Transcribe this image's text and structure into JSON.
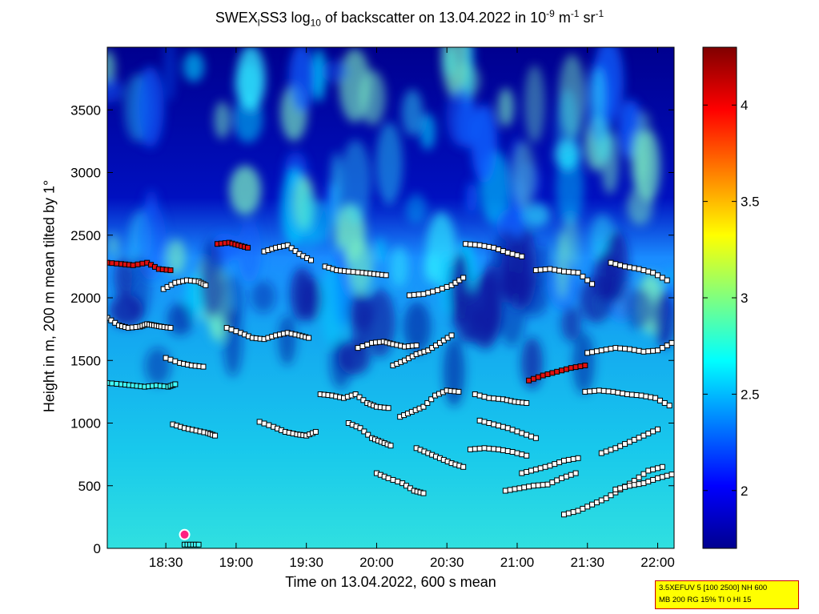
{
  "chart_data": {
    "type": "heatmap",
    "title": {
      "prefix": "SWEX",
      "sub1": "l",
      "mid": "SS3 log",
      "sub2": "10",
      "suffix": " of backscatter on 13.04.2022 in 10",
      "sup1": "-9",
      "unit_m": " m",
      "sup2": "-1",
      "unit_sr": " sr",
      "sup3": "-1"
    },
    "xlabel": "Time on 13.04.2022, 600 s mean",
    "ylabel": "Height in m, 200 m mean tilted by 1°",
    "x_ticks": [
      "18:30",
      "19:00",
      "19:30",
      "20:00",
      "20:30",
      "21:00",
      "21:30",
      "22:00"
    ],
    "x_tick_minutes": [
      1110,
      1140,
      1170,
      1200,
      1230,
      1260,
      1290,
      1320
    ],
    "xlim_minutes": [
      1085,
      1327
    ],
    "y_ticks": [
      "0",
      "500",
      "1000",
      "1500",
      "2000",
      "2500",
      "3000",
      "3500"
    ],
    "y_tick_values": [
      0,
      500,
      1000,
      1500,
      2000,
      2500,
      3000,
      3500
    ],
    "ylim": [
      0,
      4000
    ],
    "colorbar": {
      "ticks": [
        "2",
        "2.5",
        "3",
        "3.5",
        "4"
      ],
      "tick_values": [
        2,
        2.5,
        3,
        3.5,
        4
      ],
      "range": [
        1.7,
        4.3
      ],
      "colormap": "jet"
    },
    "colors": {
      "low": "#00008f",
      "mid": "#00ffff",
      "high": "#800000"
    },
    "layers": [
      {
        "name": "layer-1",
        "color": "white",
        "points": [
          [
            1085,
            1840
          ],
          [
            1090,
            1780
          ],
          [
            1094,
            1760
          ],
          [
            1099,
            1770
          ],
          [
            1102,
            1790
          ],
          [
            1105,
            1780
          ],
          [
            1108,
            1770
          ],
          [
            1112,
            1760
          ]
        ]
      },
      {
        "name": "layer-2",
        "color": "cyan",
        "points": [
          [
            1085,
            1320
          ],
          [
            1091,
            1310
          ],
          [
            1096,
            1300
          ],
          [
            1101,
            1290
          ],
          [
            1106,
            1300
          ],
          [
            1111,
            1290
          ],
          [
            1114,
            1310
          ]
        ]
      },
      {
        "name": "layer-3",
        "color": "red",
        "points": [
          [
            1085,
            2280
          ],
          [
            1091,
            2270
          ],
          [
            1096,
            2260
          ],
          [
            1102,
            2280
          ],
          [
            1107,
            2230
          ],
          [
            1112,
            2220
          ]
        ]
      },
      {
        "name": "layer-4",
        "color": "white",
        "points": [
          [
            1109,
            2070
          ],
          [
            1114,
            2120
          ],
          [
            1119,
            2140
          ],
          [
            1124,
            2130
          ],
          [
            1127,
            2100
          ]
        ]
      },
      {
        "name": "layer-5",
        "color": "white",
        "points": [
          [
            1110,
            1520
          ],
          [
            1116,
            1480
          ],
          [
            1121,
            1460
          ],
          [
            1126,
            1450
          ]
        ]
      },
      {
        "name": "layer-6",
        "color": "white",
        "points": [
          [
            1113,
            990
          ],
          [
            1118,
            960
          ],
          [
            1123,
            940
          ],
          [
            1128,
            920
          ],
          [
            1131,
            900
          ]
        ]
      },
      {
        "name": "layer-7",
        "color": "red",
        "points": [
          [
            1132,
            2430
          ],
          [
            1137,
            2440
          ],
          [
            1141,
            2420
          ],
          [
            1145,
            2400
          ]
        ]
      },
      {
        "name": "layer-8",
        "color": "white",
        "points": [
          [
            1136,
            1760
          ],
          [
            1142,
            1720
          ],
          [
            1147,
            1680
          ],
          [
            1152,
            1670
          ],
          [
            1157,
            1700
          ],
          [
            1162,
            1720
          ],
          [
            1167,
            1700
          ],
          [
            1171,
            1680
          ]
        ]
      },
      {
        "name": "layer-9",
        "color": "white",
        "points": [
          [
            1150,
            1010
          ],
          [
            1156,
            970
          ],
          [
            1161,
            930
          ],
          [
            1166,
            910
          ],
          [
            1170,
            900
          ],
          [
            1174,
            930
          ]
        ]
      },
      {
        "name": "layer-10",
        "color": "white",
        "points": [
          [
            1152,
            2370
          ],
          [
            1157,
            2400
          ],
          [
            1162,
            2420
          ],
          [
            1167,
            2350
          ],
          [
            1172,
            2300
          ]
        ]
      },
      {
        "name": "layer-11",
        "color": "white",
        "points": [
          [
            1176,
            1230
          ],
          [
            1181,
            1220
          ],
          [
            1186,
            1200
          ],
          [
            1191,
            1230
          ],
          [
            1196,
            1160
          ],
          [
            1200,
            1130
          ],
          [
            1205,
            1120
          ]
        ]
      },
      {
        "name": "layer-12",
        "color": "white",
        "points": [
          [
            1178,
            2250
          ],
          [
            1183,
            2220
          ],
          [
            1188,
            2210
          ],
          [
            1194,
            2200
          ],
          [
            1199,
            2190
          ],
          [
            1204,
            2180
          ]
        ]
      },
      {
        "name": "layer-13",
        "color": "white",
        "points": [
          [
            1188,
            1000
          ],
          [
            1193,
            960
          ],
          [
            1198,
            880
          ],
          [
            1202,
            850
          ],
          [
            1206,
            820
          ]
        ]
      },
      {
        "name": "layer-14",
        "color": "white",
        "points": [
          [
            1192,
            1600
          ],
          [
            1198,
            1640
          ],
          [
            1203,
            1650
          ],
          [
            1207,
            1630
          ],
          [
            1212,
            1610
          ],
          [
            1217,
            1620
          ]
        ]
      },
      {
        "name": "layer-15",
        "color": "white",
        "points": [
          [
            1200,
            600
          ],
          [
            1205,
            560
          ],
          [
            1211,
            520
          ],
          [
            1216,
            460
          ],
          [
            1220,
            440
          ]
        ]
      },
      {
        "name": "layer-16",
        "color": "white",
        "points": [
          [
            1207,
            1460
          ],
          [
            1212,
            1500
          ],
          [
            1217,
            1550
          ],
          [
            1222,
            1580
          ],
          [
            1227,
            1640
          ],
          [
            1232,
            1700
          ]
        ]
      },
      {
        "name": "layer-17",
        "color": "white",
        "points": [
          [
            1210,
            1050
          ],
          [
            1215,
            1090
          ],
          [
            1220,
            1130
          ],
          [
            1225,
            1220
          ],
          [
            1230,
            1260
          ],
          [
            1235,
            1250
          ]
        ]
      },
      {
        "name": "layer-18",
        "color": "white",
        "points": [
          [
            1214,
            2020
          ],
          [
            1220,
            2030
          ],
          [
            1226,
            2060
          ],
          [
            1232,
            2100
          ],
          [
            1237,
            2160
          ]
        ]
      },
      {
        "name": "layer-19",
        "color": "white",
        "points": [
          [
            1217,
            800
          ],
          [
            1222,
            760
          ],
          [
            1227,
            720
          ],
          [
            1232,
            680
          ],
          [
            1237,
            650
          ]
        ]
      },
      {
        "name": "layer-20",
        "color": "white",
        "points": [
          [
            1238,
            2430
          ],
          [
            1244,
            2420
          ],
          [
            1250,
            2400
          ],
          [
            1256,
            2360
          ],
          [
            1262,
            2330
          ]
        ]
      },
      {
        "name": "layer-21",
        "color": "white",
        "points": [
          [
            1242,
            1230
          ],
          [
            1248,
            1200
          ],
          [
            1254,
            1190
          ],
          [
            1259,
            1170
          ],
          [
            1264,
            1160
          ]
        ]
      },
      {
        "name": "layer-22",
        "color": "white",
        "points": [
          [
            1244,
            1020
          ],
          [
            1250,
            990
          ],
          [
            1256,
            960
          ],
          [
            1262,
            920
          ],
          [
            1268,
            880
          ]
        ]
      },
      {
        "name": "layer-23",
        "color": "white",
        "points": [
          [
            1240,
            790
          ],
          [
            1246,
            800
          ],
          [
            1252,
            790
          ],
          [
            1258,
            770
          ],
          [
            1264,
            740
          ]
        ]
      },
      {
        "name": "layer-24",
        "color": "white",
        "points": [
          [
            1255,
            460
          ],
          [
            1261,
            480
          ],
          [
            1267,
            500
          ],
          [
            1273,
            510
          ],
          [
            1279,
            560
          ],
          [
            1285,
            600
          ]
        ]
      },
      {
        "name": "layer-25",
        "color": "white",
        "points": [
          [
            1262,
            600
          ],
          [
            1268,
            630
          ],
          [
            1274,
            660
          ],
          [
            1280,
            700
          ],
          [
            1286,
            720
          ]
        ]
      },
      {
        "name": "layer-26",
        "color": "red",
        "points": [
          [
            1265,
            1340
          ],
          [
            1271,
            1380
          ],
          [
            1277,
            1410
          ],
          [
            1283,
            1440
          ],
          [
            1289,
            1460
          ]
        ]
      },
      {
        "name": "layer-27",
        "color": "white",
        "points": [
          [
            1268,
            2220
          ],
          [
            1274,
            2230
          ],
          [
            1280,
            2210
          ],
          [
            1286,
            2200
          ],
          [
            1292,
            2110
          ]
        ]
      },
      {
        "name": "layer-28",
        "color": "white",
        "points": [
          [
            1280,
            270
          ],
          [
            1286,
            300
          ],
          [
            1292,
            350
          ],
          [
            1298,
            400
          ],
          [
            1304,
            470
          ],
          [
            1310,
            540
          ],
          [
            1316,
            620
          ],
          [
            1322,
            650
          ]
        ]
      },
      {
        "name": "layer-29",
        "color": "white",
        "points": [
          [
            1289,
            1250
          ],
          [
            1295,
            1260
          ],
          [
            1301,
            1250
          ],
          [
            1307,
            1230
          ],
          [
            1313,
            1220
          ],
          [
            1319,
            1200
          ],
          [
            1325,
            1140
          ]
        ]
      },
      {
        "name": "layer-30",
        "color": "white",
        "points": [
          [
            1290,
            1560
          ],
          [
            1296,
            1580
          ],
          [
            1302,
            1600
          ],
          [
            1308,
            1590
          ],
          [
            1314,
            1570
          ],
          [
            1320,
            1580
          ],
          [
            1326,
            1640
          ]
        ]
      },
      {
        "name": "layer-31",
        "color": "white",
        "points": [
          [
            1296,
            760
          ],
          [
            1302,
            800
          ],
          [
            1308,
            850
          ],
          [
            1314,
            900
          ],
          [
            1320,
            950
          ]
        ]
      },
      {
        "name": "layer-32",
        "color": "white",
        "points": [
          [
            1300,
            2280
          ],
          [
            1306,
            2250
          ],
          [
            1312,
            2230
          ],
          [
            1318,
            2200
          ],
          [
            1324,
            2140
          ]
        ]
      },
      {
        "name": "layer-33",
        "color": "white",
        "points": [
          [
            1302,
            470
          ],
          [
            1308,
            500
          ],
          [
            1314,
            520
          ],
          [
            1320,
            560
          ],
          [
            1326,
            590
          ]
        ]
      }
    ],
    "ground_marker": {
      "x": 1118,
      "y": 110
    }
  },
  "info": {
    "line1": "3.5XEFUV 5 [100 2500] NH 600",
    "line2": "MB 200 RG 15% TI 0 HI 15"
  }
}
